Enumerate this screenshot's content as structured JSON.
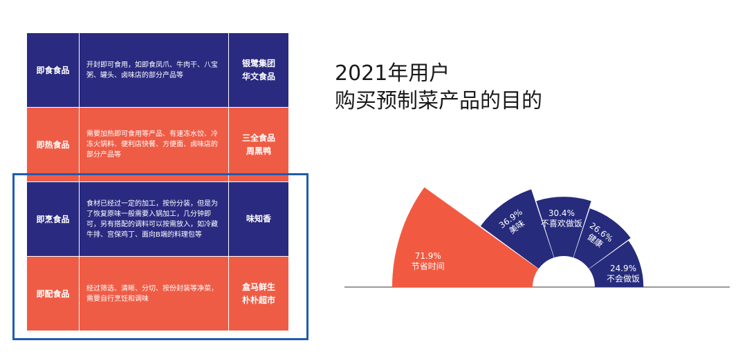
{
  "table": {
    "rows": [
      {
        "category": "即食食品",
        "description": "开封即可食用，如即食凤爪、牛肉干、八宝粥、罐头、卤味店的部分产品等",
        "brands": "银鹭集团\n华文食品",
        "color": "#2a2a80"
      },
      {
        "category": "即热食品",
        "description": "需要加热即可食用等产品、有速冻水饺、冷冻火锅料、便利店快餐、方便面、卤味店的部分产品等",
        "brands": "三全食品\n周黑鸭",
        "color": "#ef5c45"
      },
      {
        "category": "即烹食品",
        "description": "食材已经过一定的加工，按份分装，但是为了恢复原味一般需要入锅加工，几分钟即可，另有搭配的调料可以按需放入，如冷藏牛排、宫保鸡丁、面向B端的料理包等",
        "brands": "味知香",
        "color": "#2a2a80"
      },
      {
        "category": "即配食品",
        "description": "经过筛选、清晰、分切、按份封装等净菜，需要自行烹饪和调味",
        "brands": "盒马鲜生\n朴朴超市",
        "color": "#ef5c45"
      }
    ]
  },
  "chart_data": {
    "type": "pie",
    "title": "2021年用户\n购买预制菜产品的目的",
    "slices": [
      {
        "label": "节省时间",
        "value": 71.9,
        "display": "71.9%",
        "color": "#f15a41"
      },
      {
        "label": "美味",
        "value": 36.9,
        "display": "36.9%",
        "color": "#262b7c"
      },
      {
        "label": "不喜欢做饭",
        "value": 30.4,
        "display": "30.4%",
        "color": "#262b7c"
      },
      {
        "label": "健康",
        "value": 26.6,
        "display": "26.6%",
        "color": "#262b7c"
      },
      {
        "label": "不会做饭",
        "value": 24.9,
        "display": "24.9%",
        "color": "#262b7c"
      }
    ]
  },
  "colors": {
    "blue": "#2a2a80",
    "red": "#ef5c45",
    "highlight": "#1f5bb0",
    "baseline": "#333333"
  }
}
